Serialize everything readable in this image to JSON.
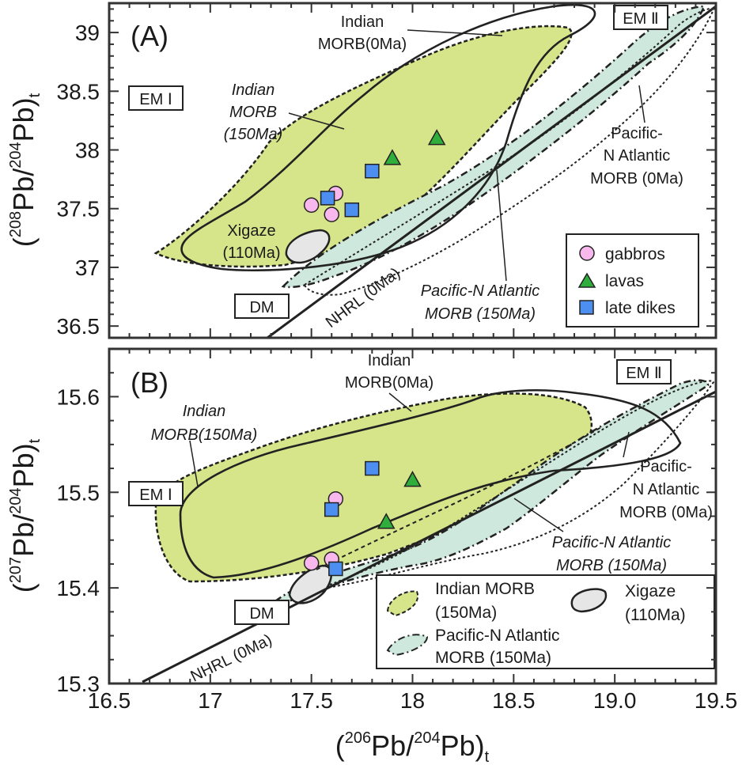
{
  "colors": {
    "indian_fill": "#d6e48a",
    "pacific_fill": "#cfe8dd",
    "xigaze_fill": "#e6e6e6",
    "gabbro": "#f8b8ee",
    "lava": "#2fae3c",
    "dike": "#4d8ff0",
    "frame": "#333333"
  },
  "axes": {
    "xlabel": {
      "prefix": "(",
      "sup": "206",
      "mid1": "Pb/",
      "sup2": "204",
      "mid2": "Pb)",
      "sub": "t"
    },
    "ylabel_a": {
      "prefix": "(",
      "sup": "208",
      "mid1": "Pb/",
      "sup2": "204",
      "mid2": "Pb)",
      "sub": "t"
    },
    "ylabel_b": {
      "prefix": "(",
      "sup": "207",
      "mid1": "Pb/",
      "sup2": "204",
      "mid2": "Pb)",
      "sub": "t"
    },
    "xticks": [
      "16.5",
      "17",
      "17.5",
      "18",
      "18.5",
      "19.0",
      "19.5"
    ],
    "yticks_a": [
      "39",
      "38.5",
      "38",
      "37.5",
      "37",
      "36.5"
    ],
    "yticks_b": [
      "15.6",
      "15.5",
      "15.4",
      "15.3"
    ]
  },
  "panel_a": {
    "label": "(A)",
    "annotations": {
      "em1": "EM Ⅰ",
      "em2": "EM Ⅱ",
      "dm": "DM",
      "indian_0_l1": "Indian",
      "indian_0_l2": "MORB(0Ma)",
      "indian_150_l1": "Indian",
      "indian_150_l2": "MORB",
      "indian_150_l3": "(150Ma)",
      "pac0_l1": "Pacific-",
      "pac0_l2": "N Atlantic",
      "pac0_l3": "MORB (0Ma)",
      "pac150_l1": "Pacific-N Atlantic",
      "pac150_l2": "MORB (150Ma)",
      "xig_l1": "Xigaze",
      "xig_l2": "(110Ma)",
      "nhrl": "NHRL (0Ma)"
    },
    "legend": {
      "gabbros": "gabbros",
      "lavas": "lavas",
      "dikes": "late dikes"
    }
  },
  "panel_b": {
    "label": "(B)",
    "annotations": {
      "em1": "EM Ⅰ",
      "em2": "EM Ⅱ",
      "dm": "DM",
      "indian_0_l1": "Indian",
      "indian_0_l2": "MORB(0Ma)",
      "indian_150_l1": "Indian",
      "indian_150_l2": "MORB(150Ma)",
      "pac0_l1": "Pacific-",
      "pac0_l2": "N Atlantic",
      "pac0_l3": "MORB (0Ma)",
      "pac150_l1": "Pacific-N Atlantic",
      "pac150_l2": "MORB (150Ma)",
      "nhrl": "NHRL (0Ma)"
    },
    "legend": {
      "indian_l1": "Indian MORB",
      "indian_l2": "(150Ma)",
      "xig_l1": "Xigaze",
      "xig_l2": "(110Ma)",
      "pac_l1": "Pacific-N Atlantic",
      "pac_l2": "MORB (150Ma)"
    }
  },
  "chart_data": [
    {
      "type": "scatter",
      "panel": "A",
      "xlim": [
        16.5,
        19.5
      ],
      "ylim": [
        36.4,
        39.25
      ],
      "series": [
        {
          "name": "gabbros",
          "marker": "circle",
          "x": [
            17.5,
            17.6,
            17.62
          ],
          "y": [
            37.53,
            37.45,
            37.63
          ]
        },
        {
          "name": "lavas",
          "marker": "triangle",
          "x": [
            17.9,
            18.12
          ],
          "y": [
            37.93,
            38.1
          ]
        },
        {
          "name": "late dikes",
          "marker": "square",
          "x": [
            17.58,
            17.8,
            17.7
          ],
          "y": [
            37.59,
            37.82,
            37.49
          ]
        }
      ]
    },
    {
      "type": "scatter",
      "panel": "B",
      "xlim": [
        16.5,
        19.5
      ],
      "ylim": [
        15.3,
        15.65
      ],
      "series": [
        {
          "name": "gabbros",
          "marker": "circle",
          "x": [
            17.5,
            17.6,
            17.62
          ],
          "y": [
            15.426,
            15.43,
            15.493
          ]
        },
        {
          "name": "lavas",
          "marker": "triangle",
          "x": [
            17.87,
            18.0
          ],
          "y": [
            15.469,
            15.513
          ]
        },
        {
          "name": "late dikes",
          "marker": "square",
          "x": [
            17.6,
            17.8,
            17.62
          ],
          "y": [
            15.482,
            15.525,
            15.42
          ]
        }
      ]
    }
  ]
}
